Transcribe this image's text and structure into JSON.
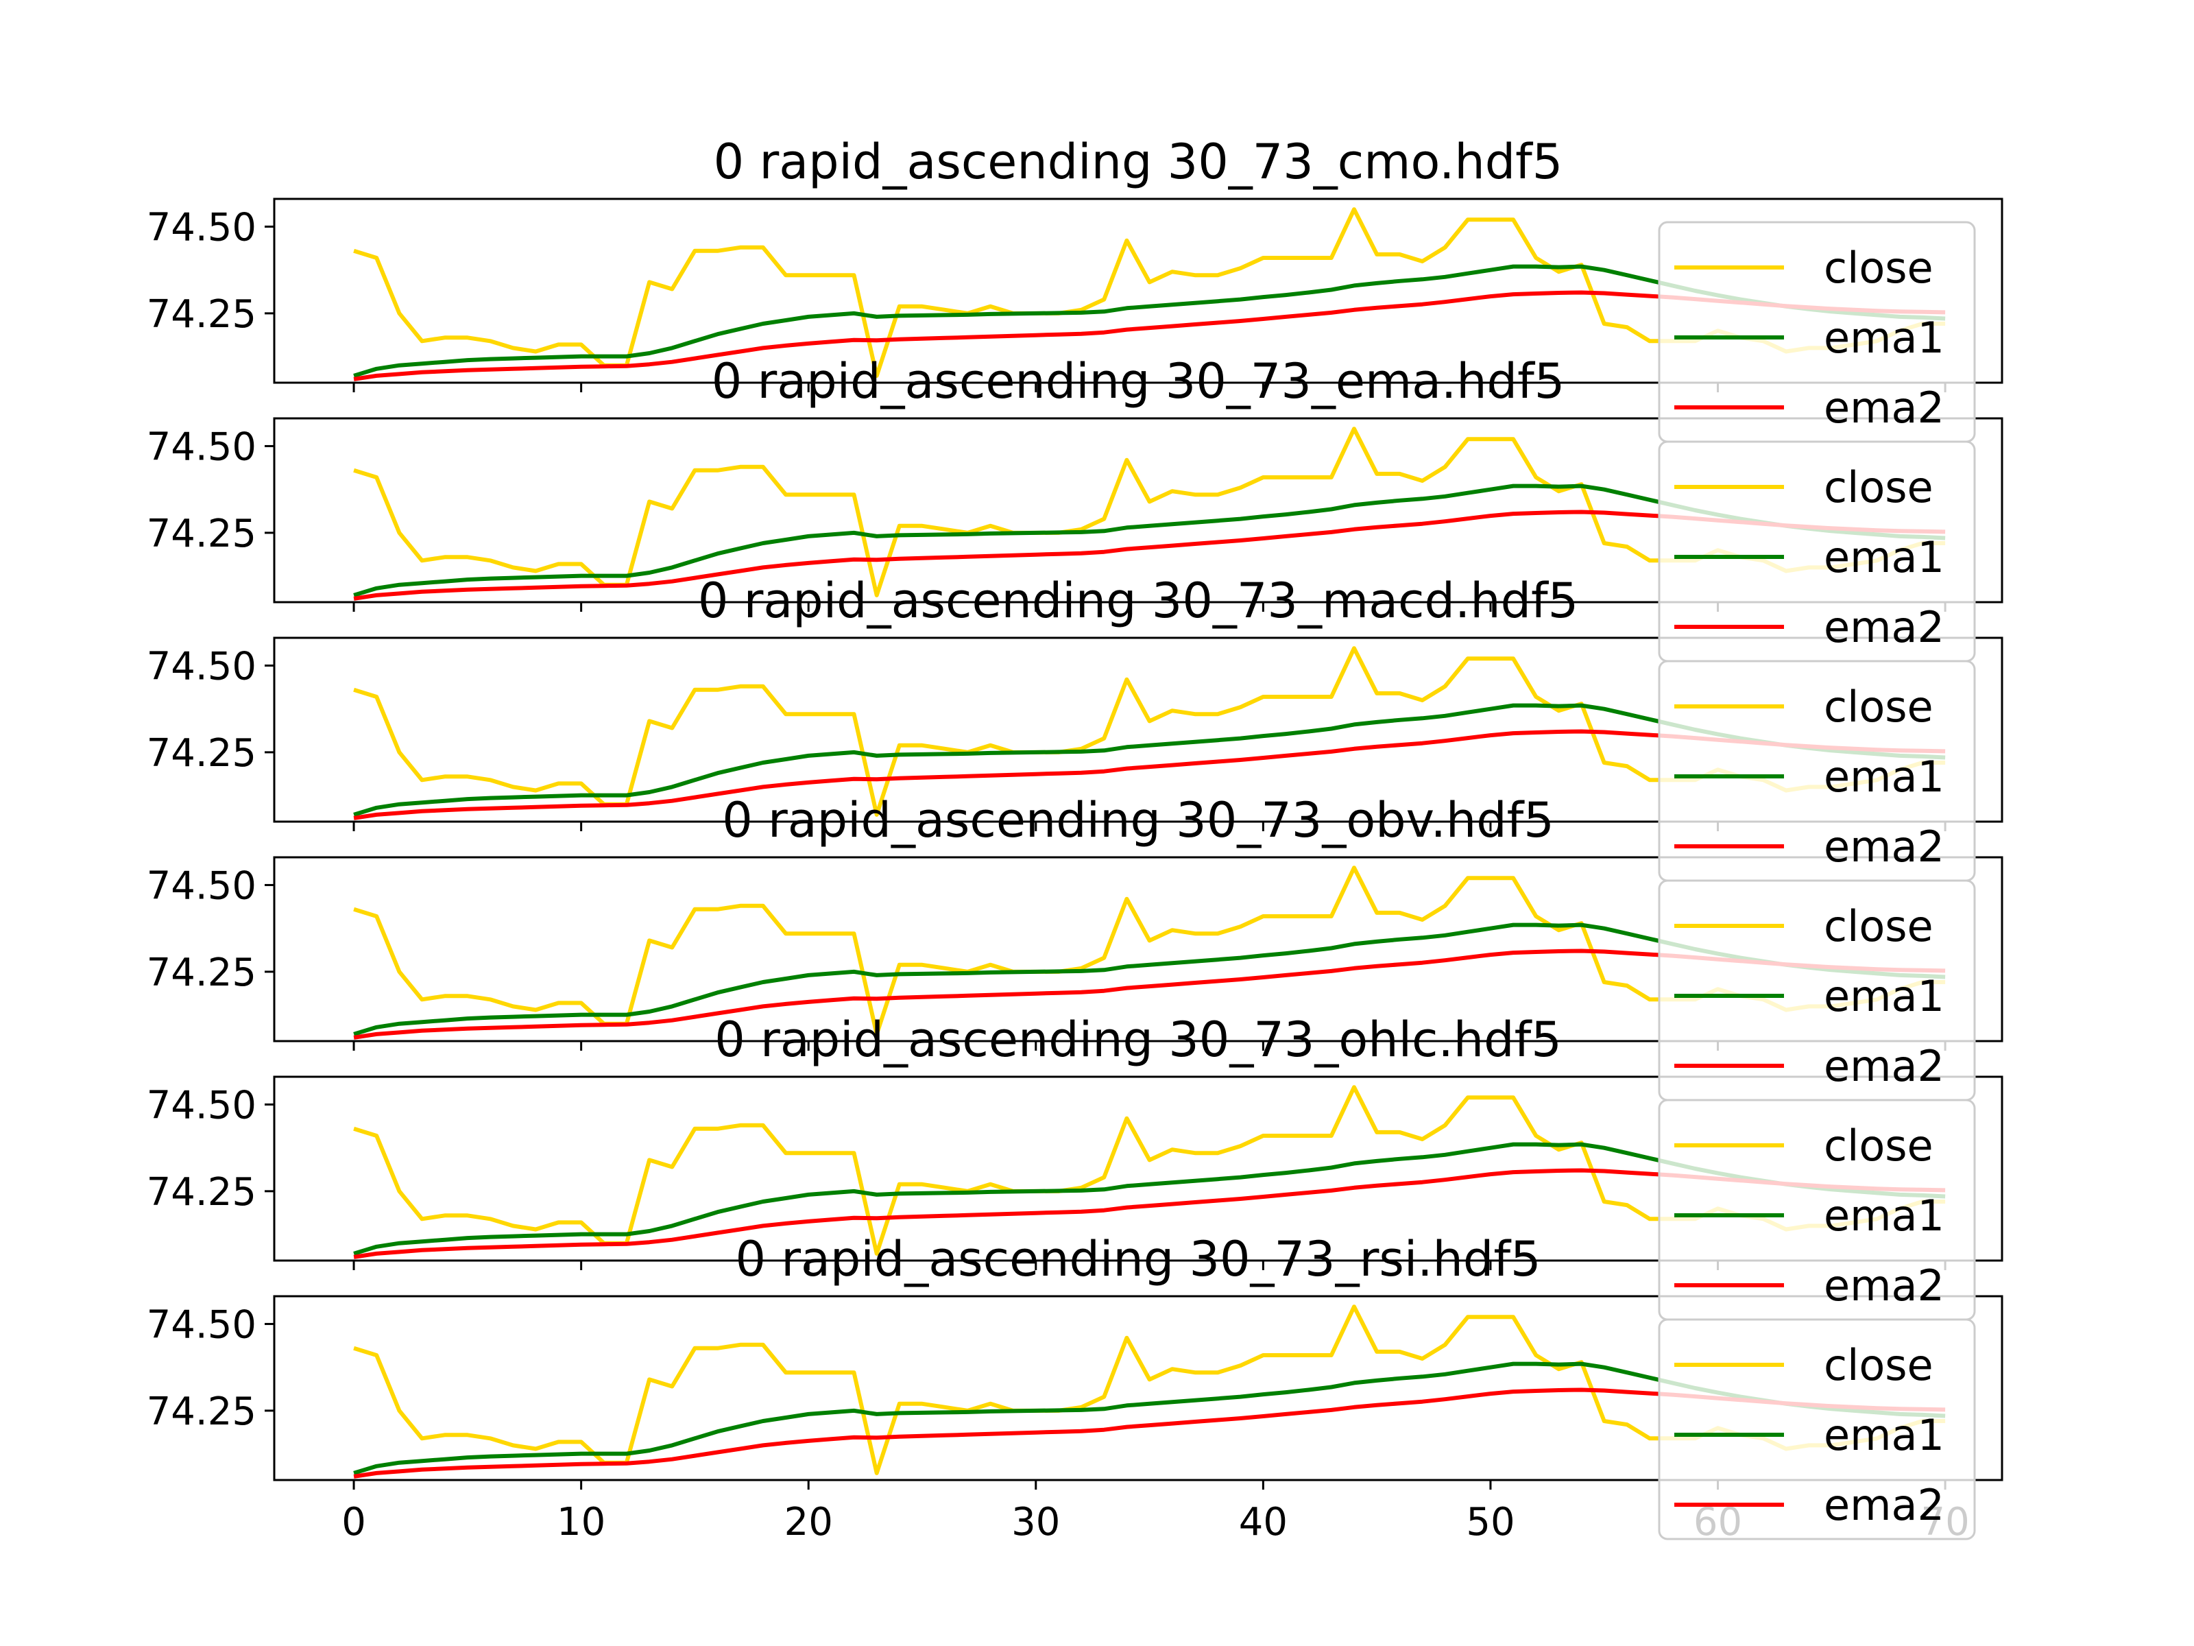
{
  "chart_data": [
    {
      "type": "line",
      "title": "0 rapid_ascending 30_73_cmo.hdf5",
      "xlim": [
        -3.5,
        72.5
      ],
      "ylim": [
        74.05,
        74.58
      ],
      "ytick_labels": [
        "74.25",
        "74.50"
      ],
      "legend": {
        "placement": "right",
        "entries": [
          "close",
          "ema1",
          "ema2"
        ]
      },
      "series": [
        {
          "name": "close",
          "color": "#FFD700",
          "values": []
        },
        {
          "name": "ema1",
          "color": "#008000",
          "values": []
        },
        {
          "name": "ema2",
          "color": "#FF0000",
          "values": []
        }
      ]
    },
    {
      "type": "line",
      "title": "0 rapid_ascending 30_73_ema.hdf5",
      "xlim": [
        -3.5,
        72.5
      ],
      "ylim": [
        74.05,
        74.58
      ],
      "ytick_labels": [
        "74.25",
        "74.50"
      ],
      "legend": {
        "placement": "right",
        "entries": [
          "close",
          "ema1",
          "ema2"
        ]
      }
    },
    {
      "type": "line",
      "title": "0 rapid_ascending 30_73_macd.hdf5",
      "xlim": [
        -3.5,
        72.5
      ],
      "ylim": [
        74.05,
        74.58
      ],
      "ytick_labels": [
        "74.25",
        "74.50"
      ],
      "legend": {
        "placement": "right",
        "entries": [
          "close",
          "ema1",
          "ema2"
        ]
      }
    },
    {
      "type": "line",
      "title": "0 rapid_ascending 30_73_obv.hdf5",
      "xlim": [
        -3.5,
        72.5
      ],
      "ylim": [
        74.05,
        74.58
      ],
      "ytick_labels": [
        "74.25",
        "74.50"
      ],
      "legend": {
        "placement": "right",
        "entries": [
          "close",
          "ema1",
          "ema2"
        ]
      }
    },
    {
      "type": "line",
      "title": "0 rapid_ascending 30_73_ohlc.hdf5",
      "xlim": [
        -3.5,
        72.5
      ],
      "ylim": [
        74.05,
        74.58
      ],
      "ytick_labels": [
        "74.25",
        "74.50"
      ],
      "legend": {
        "placement": "right",
        "entries": [
          "close",
          "ema1",
          "ema2"
        ]
      }
    },
    {
      "type": "line",
      "title": "0 rapid_ascending 30_73_rsi.hdf5",
      "xlim": [
        -3.5,
        72.5
      ],
      "ylim": [
        74.05,
        74.58
      ],
      "ytick_labels": [
        "74.25",
        "74.50"
      ],
      "xtick_labels": [
        "0",
        "10",
        "20",
        "30",
        "40",
        "50",
        "60",
        "70"
      ],
      "legend": {
        "placement": "right",
        "entries": [
          "close",
          "ema1",
          "ema2"
        ]
      }
    }
  ],
  "shared_series": {
    "x": [
      0,
      1,
      2,
      3,
      4,
      5,
      6,
      7,
      8,
      9,
      10,
      11,
      12,
      13,
      14,
      15,
      16,
      17,
      18,
      19,
      20,
      21,
      22,
      23,
      24,
      25,
      26,
      27,
      28,
      29,
      30,
      31,
      32,
      33,
      34,
      35,
      36,
      37,
      38,
      39,
      40,
      41,
      42,
      43,
      44,
      45,
      46,
      47,
      48,
      49,
      50,
      51,
      52,
      53,
      54,
      55,
      56,
      57,
      58,
      59,
      60,
      61,
      62,
      63,
      64,
      65,
      66,
      67,
      68,
      69,
      70
    ],
    "close": [
      74.43,
      74.41,
      74.25,
      74.17,
      74.18,
      74.18,
      74.17,
      74.15,
      74.14,
      74.16,
      74.16,
      74.1,
      74.1,
      74.34,
      74.32,
      74.43,
      74.43,
      74.44,
      74.44,
      74.36,
      74.36,
      74.36,
      74.36,
      74.07,
      74.27,
      74.27,
      74.26,
      74.25,
      74.27,
      74.25,
      74.25,
      74.25,
      74.26,
      74.29,
      74.46,
      74.34,
      74.37,
      74.36,
      74.36,
      74.38,
      74.41,
      74.41,
      74.41,
      74.41,
      74.55,
      74.42,
      74.42,
      74.4,
      74.44,
      74.52,
      74.52,
      74.52,
      74.41,
      74.37,
      74.39,
      74.22,
      74.21,
      74.17,
      74.17,
      74.17,
      74.2,
      74.18,
      74.17,
      74.14,
      74.15,
      74.15,
      74.16,
      74.17,
      74.2,
      74.22,
      74.22
    ],
    "ema1": [
      74.07,
      74.09,
      74.1,
      74.105,
      74.11,
      74.115,
      74.118,
      74.12,
      74.122,
      74.124,
      74.126,
      74.126,
      74.126,
      74.135,
      74.15,
      74.17,
      74.19,
      74.205,
      74.22,
      74.23,
      74.24,
      74.245,
      74.25,
      74.24,
      74.243,
      74.244,
      74.245,
      74.246,
      74.248,
      74.249,
      74.25,
      74.251,
      74.252,
      74.255,
      74.265,
      74.27,
      74.275,
      74.28,
      74.285,
      74.29,
      74.297,
      74.303,
      74.31,
      74.318,
      74.33,
      74.337,
      74.343,
      74.348,
      74.355,
      74.365,
      74.375,
      74.385,
      74.385,
      74.383,
      74.385,
      74.375,
      74.36,
      74.345,
      74.33,
      74.315,
      74.302,
      74.29,
      74.28,
      74.27,
      74.262,
      74.255,
      74.25,
      74.245,
      74.24,
      74.238,
      74.235
    ],
    "ema2": [
      74.06,
      74.07,
      74.075,
      74.08,
      74.083,
      74.086,
      74.088,
      74.09,
      74.092,
      74.094,
      74.096,
      74.097,
      74.098,
      74.103,
      74.11,
      74.12,
      74.13,
      74.14,
      74.15,
      74.157,
      74.163,
      74.168,
      74.173,
      74.172,
      74.175,
      74.177,
      74.179,
      74.181,
      74.183,
      74.185,
      74.187,
      74.189,
      74.191,
      74.195,
      74.203,
      74.208,
      74.213,
      74.218,
      74.223,
      74.228,
      74.234,
      74.24,
      74.246,
      74.252,
      74.26,
      74.266,
      74.271,
      74.276,
      74.283,
      74.291,
      74.299,
      74.305,
      74.307,
      74.309,
      74.31,
      74.308,
      74.304,
      74.3,
      74.296,
      74.291,
      74.286,
      74.281,
      74.276,
      74.271,
      74.267,
      74.263,
      74.26,
      74.257,
      74.255,
      74.254,
      74.253
    ]
  }
}
